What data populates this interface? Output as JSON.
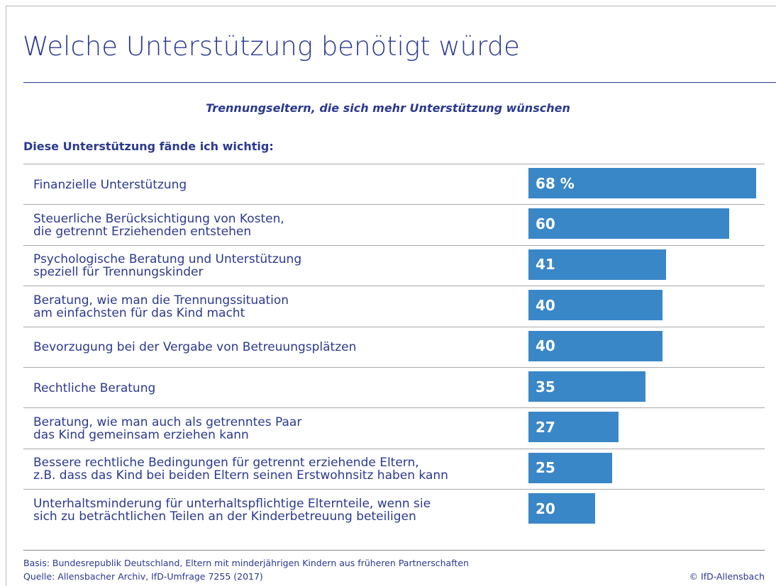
{
  "chart_data": {
    "type": "bar",
    "orientation": "horizontal",
    "title": "Welche Unterstützung benötigt würde",
    "subtitle": "Trennungseltern, die sich mehr Unterstützung wünschen",
    "heading": "Diese Unterstützung fände ich wichtig:",
    "categories": [
      "Finanzielle Unterstützung",
      "Steuerliche Berücksichtigung von Kosten,\ndie getrennt Erziehenden entstehen",
      "Psychologische Beratung und Unterstützung\nspeziell für Trennungskinder",
      "Beratung, wie man die Trennungssituation\nam einfachsten für das Kind macht",
      "Bevorzugung bei der Vergabe von Betreuungsplätzen",
      "Rechtliche Beratung",
      "Beratung, wie man auch als getrenntes Paar\ndas Kind gemeinsam erziehen kann",
      "Bessere rechtliche Bedingungen für getrennt erziehende Eltern,\nz.B. dass das Kind bei beiden Eltern seinen Erstwohnsitz haben kann",
      "Unterhaltsminderung für unterhaltspflichtige Elternteile, wenn sie\nsich zu beträchtlichen Teilen an der Kinderbetreuung beteiligen"
    ],
    "values": [
      68,
      60,
      41,
      40,
      40,
      35,
      27,
      25,
      20
    ],
    "value_labels": [
      "68 %",
      "60",
      "41",
      "40",
      "40",
      "35",
      "27",
      "25",
      "20"
    ],
    "color": "#3a87c8",
    "basis": "Basis: Bundesrepublik Deutschland, Eltern mit minderjährigen Kindern aus früheren Partnerschaften",
    "source": "Quelle: Allensbacher Archiv, IfD-Umfrage 7255 (2017)",
    "copyright": "© IfD-Allensbach"
  }
}
